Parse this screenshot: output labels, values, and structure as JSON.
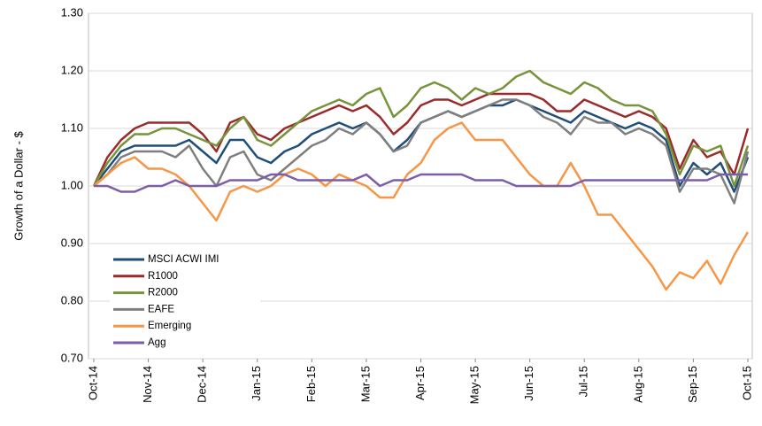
{
  "chart_data": {
    "type": "line",
    "y_label": "Growth of a Dollar - $",
    "categories": [
      "Oct-14",
      null,
      null,
      null,
      "Nov-14",
      null,
      null,
      null,
      "Dec-14",
      null,
      null,
      null,
      "Jan-15",
      null,
      null,
      null,
      "Feb-15",
      null,
      null,
      null,
      "Mar-15",
      null,
      null,
      null,
      "Apr-15",
      null,
      null,
      null,
      "May-15",
      null,
      null,
      null,
      "Jun-15",
      null,
      null,
      null,
      "Jul-15",
      null,
      null,
      null,
      "Aug-15",
      null,
      null,
      null,
      "Sep-15",
      null,
      null,
      null,
      "Oct-15"
    ],
    "ylim": [
      0.7,
      1.3
    ],
    "yticks": [
      {
        "value": 0.7,
        "label": "0.70"
      },
      {
        "value": 0.8,
        "label": "0.80"
      },
      {
        "value": 0.9,
        "label": "0.90"
      },
      {
        "value": 1.0,
        "label": "1.00"
      },
      {
        "value": 1.1,
        "label": "1.10"
      },
      {
        "value": 1.2,
        "label": "1.20"
      },
      {
        "value": 1.3,
        "label": "1.30"
      }
    ],
    "grid": true,
    "legend": "lower-left",
    "series": [
      {
        "name": "MSCI ACWI IMI",
        "color": "#1f4e79",
        "values": [
          1.0,
          1.03,
          1.06,
          1.07,
          1.07,
          1.07,
          1.07,
          1.08,
          1.06,
          1.04,
          1.08,
          1.08,
          1.05,
          1.04,
          1.06,
          1.07,
          1.09,
          1.1,
          1.11,
          1.1,
          1.11,
          1.09,
          1.06,
          1.08,
          1.11,
          1.12,
          1.13,
          1.12,
          1.13,
          1.14,
          1.14,
          1.15,
          1.14,
          1.13,
          1.12,
          1.11,
          1.13,
          1.12,
          1.11,
          1.1,
          1.11,
          1.1,
          1.08,
          1.0,
          1.04,
          1.02,
          1.04,
          0.99,
          1.05
        ]
      },
      {
        "name": "R1000",
        "color": "#9b2b2b",
        "values": [
          1.0,
          1.05,
          1.08,
          1.1,
          1.11,
          1.11,
          1.11,
          1.11,
          1.09,
          1.06,
          1.11,
          1.12,
          1.09,
          1.08,
          1.1,
          1.11,
          1.12,
          1.13,
          1.14,
          1.13,
          1.14,
          1.12,
          1.09,
          1.11,
          1.14,
          1.15,
          1.15,
          1.14,
          1.15,
          1.16,
          1.16,
          1.16,
          1.16,
          1.15,
          1.13,
          1.13,
          1.15,
          1.14,
          1.13,
          1.12,
          1.13,
          1.12,
          1.1,
          1.03,
          1.08,
          1.05,
          1.06,
          1.02,
          1.1
        ]
      },
      {
        "name": "R2000",
        "color": "#77933c",
        "values": [
          1.0,
          1.04,
          1.07,
          1.09,
          1.09,
          1.1,
          1.1,
          1.09,
          1.08,
          1.07,
          1.1,
          1.12,
          1.08,
          1.07,
          1.09,
          1.11,
          1.13,
          1.14,
          1.15,
          1.14,
          1.16,
          1.17,
          1.12,
          1.14,
          1.17,
          1.18,
          1.17,
          1.15,
          1.17,
          1.16,
          1.17,
          1.19,
          1.2,
          1.18,
          1.17,
          1.16,
          1.18,
          1.17,
          1.15,
          1.14,
          1.14,
          1.13,
          1.09,
          1.02,
          1.07,
          1.06,
          1.07,
          1.0,
          1.07
        ]
      },
      {
        "name": "EAFE",
        "color": "#7f7f7f",
        "values": [
          1.0,
          1.02,
          1.05,
          1.06,
          1.06,
          1.06,
          1.05,
          1.07,
          1.03,
          1.0,
          1.05,
          1.06,
          1.02,
          1.01,
          1.03,
          1.05,
          1.07,
          1.08,
          1.1,
          1.09,
          1.11,
          1.09,
          1.06,
          1.07,
          1.11,
          1.12,
          1.13,
          1.12,
          1.13,
          1.14,
          1.15,
          1.15,
          1.14,
          1.12,
          1.11,
          1.09,
          1.12,
          1.11,
          1.11,
          1.09,
          1.1,
          1.09,
          1.07,
          0.99,
          1.03,
          1.03,
          1.02,
          0.97,
          1.06
        ]
      },
      {
        "name": "Emerging",
        "color": "#f79646",
        "values": [
          1.0,
          1.02,
          1.04,
          1.05,
          1.03,
          1.03,
          1.02,
          1.0,
          0.97,
          0.94,
          0.99,
          1.0,
          0.99,
          1.0,
          1.02,
          1.03,
          1.02,
          1.0,
          1.02,
          1.01,
          1.0,
          0.98,
          0.98,
          1.02,
          1.04,
          1.08,
          1.1,
          1.11,
          1.08,
          1.08,
          1.08,
          1.05,
          1.02,
          1.0,
          1.0,
          1.04,
          1.0,
          0.95,
          0.95,
          0.92,
          0.89,
          0.86,
          0.82,
          0.85,
          0.84,
          0.87,
          0.83,
          0.88,
          0.92
        ]
      },
      {
        "name": "Agg",
        "color": "#7b5ea7",
        "values": [
          1.0,
          1.0,
          0.99,
          0.99,
          1.0,
          1.0,
          1.01,
          1.0,
          1.0,
          1.0,
          1.01,
          1.01,
          1.01,
          1.02,
          1.02,
          1.01,
          1.01,
          1.01,
          1.01,
          1.01,
          1.02,
          1.0,
          1.01,
          1.01,
          1.02,
          1.02,
          1.02,
          1.02,
          1.01,
          1.01,
          1.01,
          1.0,
          1.0,
          1.0,
          1.0,
          1.0,
          1.01,
          1.01,
          1.01,
          1.01,
          1.01,
          1.01,
          1.01,
          1.01,
          1.01,
          1.01,
          1.02,
          1.02,
          1.02
        ]
      }
    ]
  }
}
